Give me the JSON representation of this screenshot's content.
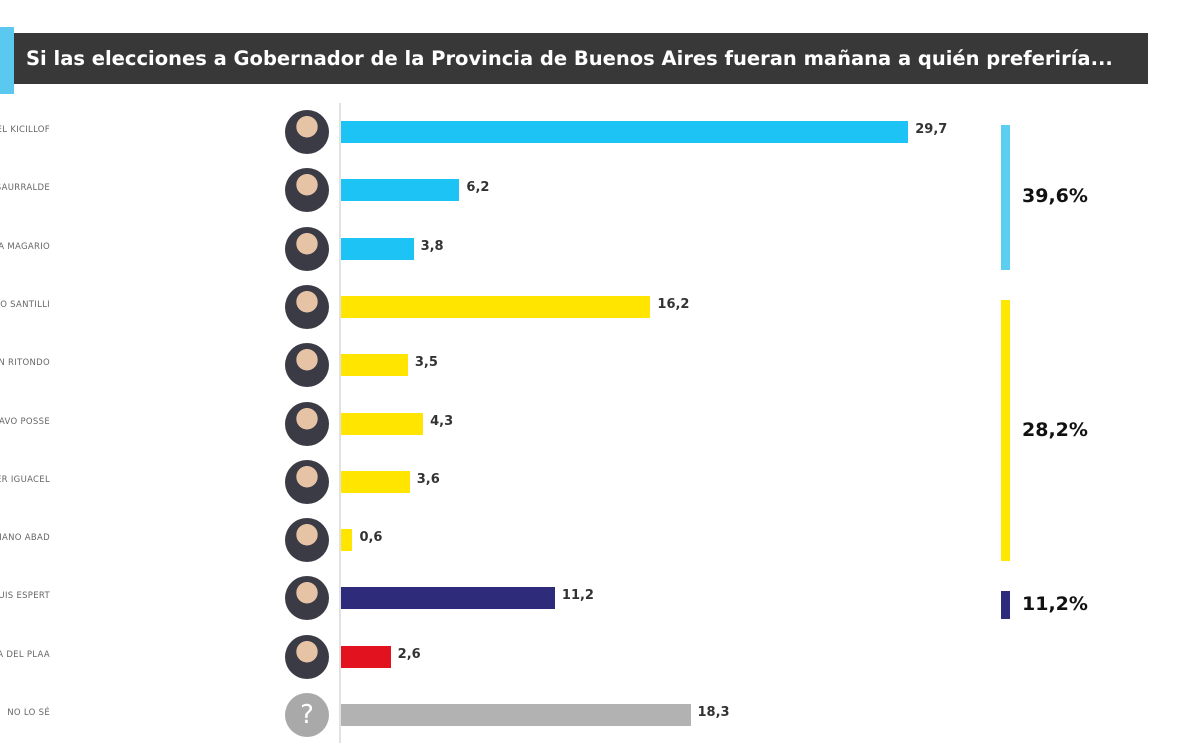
{
  "chart_data": {
    "type": "bar",
    "orientation": "horizontal",
    "title": "Si las elecciones a Gobernador de la Provincia de Buenos Aires fueran mañana a quién preferiría...",
    "categories": [
      "AXEL KICILLOF",
      "MARTÍN INSAURRALDE",
      "VERÓNICA MAGARIO",
      "DIEGO SANTILLI",
      "CRISTIAN RITONDO",
      "GUSTAVO POSSE",
      "JAVIER IGUACEL",
      "MAXIMILIANO ABAD",
      "JOSÉ LUIS ESPERT",
      "ROMINA DEL PLAA",
      "NO LO SÉ"
    ],
    "values": [
      29.7,
      6.2,
      3.8,
      16.2,
      3.5,
      4.3,
      3.6,
      0.6,
      11.2,
      2.6,
      18.3
    ],
    "value_labels": [
      "29,7",
      "6,2",
      "3,8",
      "16,2",
      "3,5",
      "4,3",
      "3,6",
      "0,6",
      "11,2",
      "2,6",
      "18,3"
    ],
    "colors": [
      "#1ec3f5",
      "#1ec3f5",
      "#1ec3f5",
      "#ffe500",
      "#ffe500",
      "#ffe500",
      "#ffe500",
      "#ffe500",
      "#2e2c7a",
      "#e3121f",
      "#b2b2b2"
    ],
    "unknown_icon": "?",
    "groups": [
      {
        "label": "39,6%",
        "value": 39.6,
        "from": 0,
        "to": 2,
        "color": "#5ccff0"
      },
      {
        "label": "28,2%",
        "value": 28.2,
        "from": 3,
        "to": 7,
        "color": "#ffe800"
      },
      {
        "label": "11,2%",
        "value": 11.2,
        "from": 8,
        "to": 8,
        "color": "#2e2c7a"
      }
    ]
  }
}
